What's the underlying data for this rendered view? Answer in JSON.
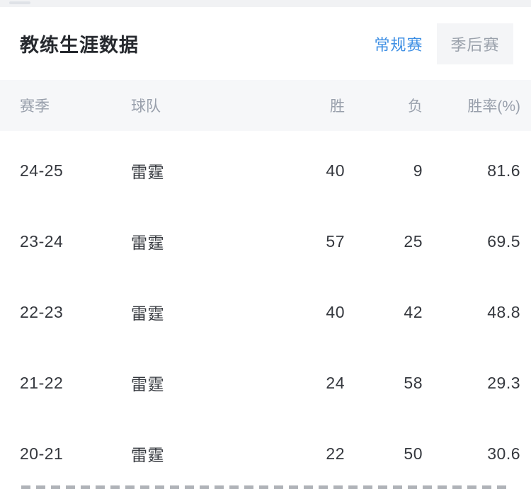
{
  "header": {
    "title": "教练生涯数据",
    "tabs": [
      {
        "label": "常规赛",
        "active": true
      },
      {
        "label": "季后赛",
        "active": false
      }
    ]
  },
  "table": {
    "columns": [
      "赛季",
      "球队",
      "胜",
      "负",
      "胜率(%)"
    ],
    "rows": [
      [
        "24-25",
        "雷霆",
        "40",
        "9",
        "81.6"
      ],
      [
        "23-24",
        "雷霆",
        "57",
        "25",
        "69.5"
      ],
      [
        "22-23",
        "雷霆",
        "40",
        "42",
        "48.8"
      ],
      [
        "21-22",
        "雷霆",
        "24",
        "58",
        "29.3"
      ],
      [
        "20-21",
        "雷霆",
        "22",
        "50",
        "30.6"
      ]
    ]
  },
  "colors": {
    "accent_blue": "#3e8fe4",
    "inactive_tab_text": "#9aa1ab",
    "header_row_bg": "#f6f7f9",
    "header_row_text": "#99a0ac",
    "body_text": "#35383e",
    "top_strip_bg": "#f1f2f4",
    "tab_group_bg": "#f4f5f7"
  }
}
